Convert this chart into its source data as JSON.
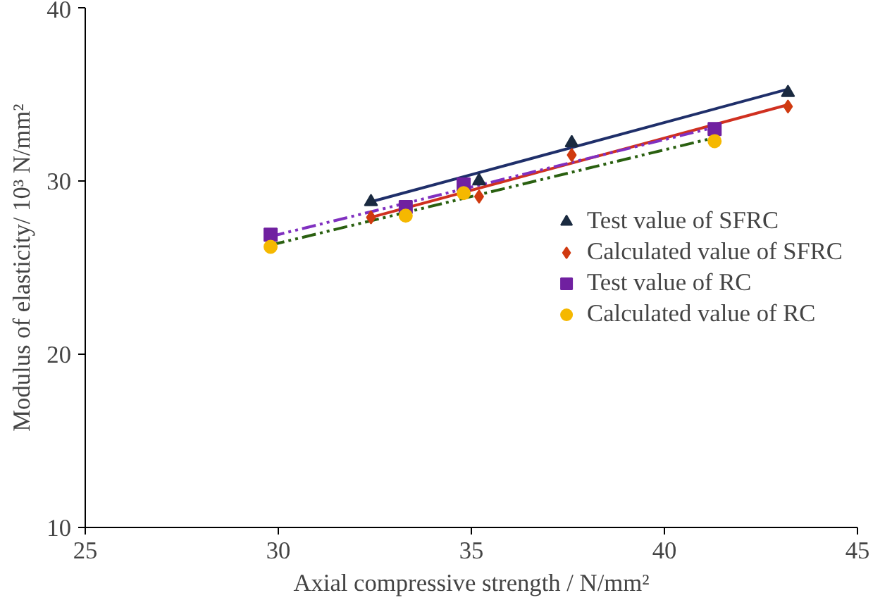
{
  "chart_data": {
    "type": "scatter",
    "xlabel": "Axial compressive strength / N/mm²",
    "ylabel": "Modulus of elasticity/ 10³ N/mm²",
    "xlim": [
      25,
      45
    ],
    "xticks": [
      25,
      30,
      35,
      40,
      45
    ],
    "ylim": [
      10,
      40
    ],
    "yticks": [
      10,
      20,
      30,
      40
    ],
    "grid": false,
    "legend": "right",
    "series": [
      {
        "name": "Test value of SFRC",
        "marker": "triangle",
        "color": "#1a2a40",
        "x": [
          32.4,
          35.2,
          37.6,
          43.2
        ],
        "values": [
          28.8,
          30.0,
          32.2,
          35.1
        ]
      },
      {
        "name": "Calculated value of SFRC",
        "marker": "diamond",
        "color": "#d03a10",
        "x": [
          32.4,
          35.2,
          37.6,
          43.2
        ],
        "values": [
          27.9,
          29.1,
          31.5,
          34.3
        ]
      },
      {
        "name": "Test value of RC",
        "marker": "square",
        "color": "#7020a0",
        "x": [
          29.8,
          33.3,
          34.8,
          41.3
        ],
        "values": [
          26.9,
          28.5,
          29.8,
          33.0
        ]
      },
      {
        "name": "Calculated value of RC",
        "marker": "circle",
        "color": "#f5b800",
        "x": [
          29.8,
          33.3,
          34.8,
          41.3
        ],
        "values": [
          26.2,
          28.0,
          29.3,
          32.3
        ]
      },
      {
        "type": "line",
        "line_style": "solid",
        "color": "#1f2f6a",
        "x": [
          32.4,
          43.2
        ],
        "values": [
          28.8,
          35.3
        ]
      },
      {
        "type": "line",
        "line_style": "solid",
        "color": "#d03020",
        "x": [
          32.4,
          43.2
        ],
        "values": [
          27.9,
          34.4
        ]
      },
      {
        "type": "line",
        "line_style": "dashdotdot",
        "color": "#8030c0",
        "x": [
          29.8,
          41.3
        ],
        "values": [
          26.8,
          33.1
        ]
      },
      {
        "type": "line",
        "line_style": "dashdotdot",
        "color": "#2a6010",
        "x": [
          29.8,
          41.3
        ],
        "values": [
          26.3,
          32.5
        ]
      }
    ]
  }
}
